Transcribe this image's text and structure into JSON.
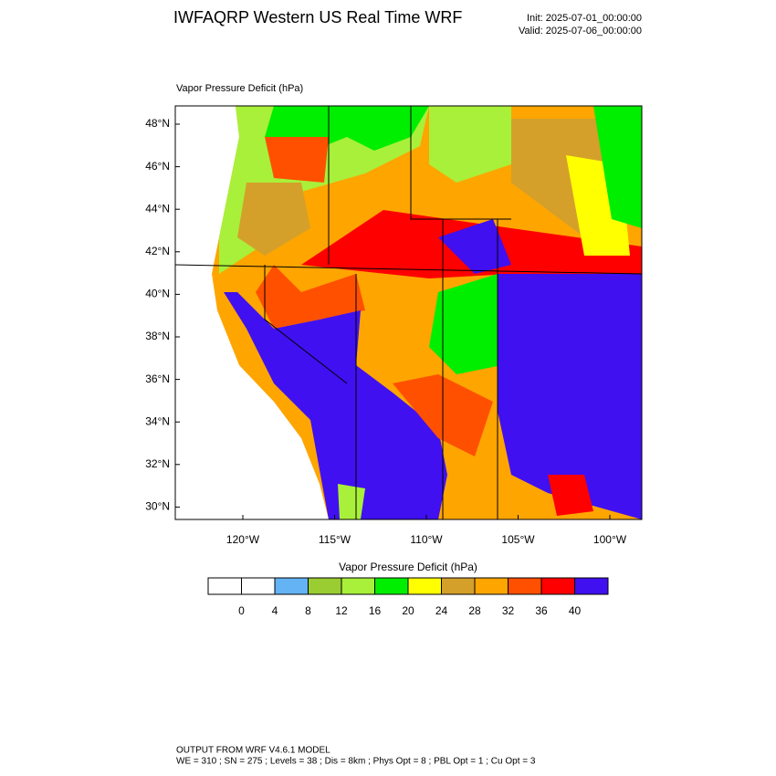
{
  "header": {
    "title": "IWFAQRP Western US Real Time WRF",
    "init": "Init: 2025-07-01_00:00:00",
    "valid": "Valid: 2025-07-06_00:00:00"
  },
  "map": {
    "subtitle": "Vapor Pressure Deficit   (hPa)",
    "lat_labels": [
      "48°N",
      "46°N",
      "44°N",
      "42°N",
      "40°N",
      "38°N",
      "36°N",
      "34°N",
      "32°N",
      "30°N"
    ],
    "lon_labels": [
      "120°W",
      "115°W",
      "110°W",
      "105°W",
      "100°W"
    ]
  },
  "colorbar": {
    "title": "Vapor Pressure Deficit  (hPa)",
    "colors": [
      "#ffffff",
      "#ffffff",
      "#63b3f5",
      "#9acd32",
      "#a8f03a",
      "#00ee00",
      "#ffff00",
      "#d4a02a",
      "#ffa500",
      "#ff5000",
      "#ff0000",
      "#4010f0"
    ],
    "labels": [
      "0",
      "4",
      "8",
      "12",
      "16",
      "20",
      "24",
      "28",
      "32",
      "36",
      "40"
    ]
  },
  "footer": {
    "line1": "OUTPUT FROM WRF V4.6.1 MODEL",
    "line2": "WE = 310 ; SN = 275 ; Levels = 38 ; Dis = 8km ; Phys Opt = 8 ; PBL Opt = 1 ; Cu Opt = 3"
  }
}
